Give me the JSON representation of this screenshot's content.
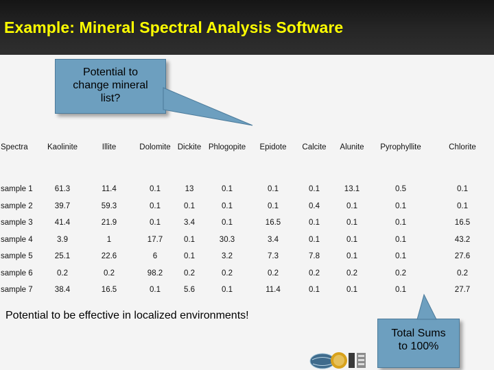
{
  "title": "Example: Mineral Spectral Analysis Software",
  "callout_top": {
    "lines": [
      "Potential to",
      "change mineral",
      "list?"
    ]
  },
  "callout_bottom": {
    "lines": [
      "Total Sums",
      "to 100%"
    ]
  },
  "note": "Potential to be effective in localized environments!",
  "table": {
    "headers": [
      "Spectra",
      "Kaolinite",
      "Illite",
      "Dolomite",
      "Dickite",
      "Phlogopite",
      "Epidote",
      "Calcite",
      "Alunite",
      "Pyrophyllite",
      "Chlorite"
    ],
    "rows": [
      [
        "sample 1",
        "61.3",
        "11.4",
        "0.1",
        "13",
        "0.1",
        "0.1",
        "0.1",
        "13.1",
        "0.5",
        "0.1"
      ],
      [
        "sample 2",
        "39.7",
        "59.3",
        "0.1",
        "0.1",
        "0.1",
        "0.1",
        "0.4",
        "0.1",
        "0.1",
        "0.1"
      ],
      [
        "sample 3",
        "41.4",
        "21.9",
        "0.1",
        "3.4",
        "0.1",
        "16.5",
        "0.1",
        "0.1",
        "0.1",
        "16.5"
      ],
      [
        "sample 4",
        "3.9",
        "1",
        "17.7",
        "0.1",
        "30.3",
        "3.4",
        "0.1",
        "0.1",
        "0.1",
        "43.2"
      ],
      [
        "sample 5",
        "25.1",
        "22.6",
        "6",
        "0.1",
        "3.2",
        "7.3",
        "7.8",
        "0.1",
        "0.1",
        "27.6"
      ],
      [
        "sample 6",
        "0.2",
        "0.2",
        "98.2",
        "0.2",
        "0.2",
        "0.2",
        "0.2",
        "0.2",
        "0.2",
        "0.2"
      ],
      [
        "sample 7",
        "38.4",
        "16.5",
        "0.1",
        "5.6",
        "0.1",
        "11.4",
        "0.1",
        "0.1",
        "0.1",
        "27.7"
      ]
    ]
  },
  "colors": {
    "title": "#ffff00",
    "callout": "#6d9fbf",
    "title_bar": "#1e1e1e"
  },
  "logo": {
    "icon": "globe-logo-icon"
  }
}
